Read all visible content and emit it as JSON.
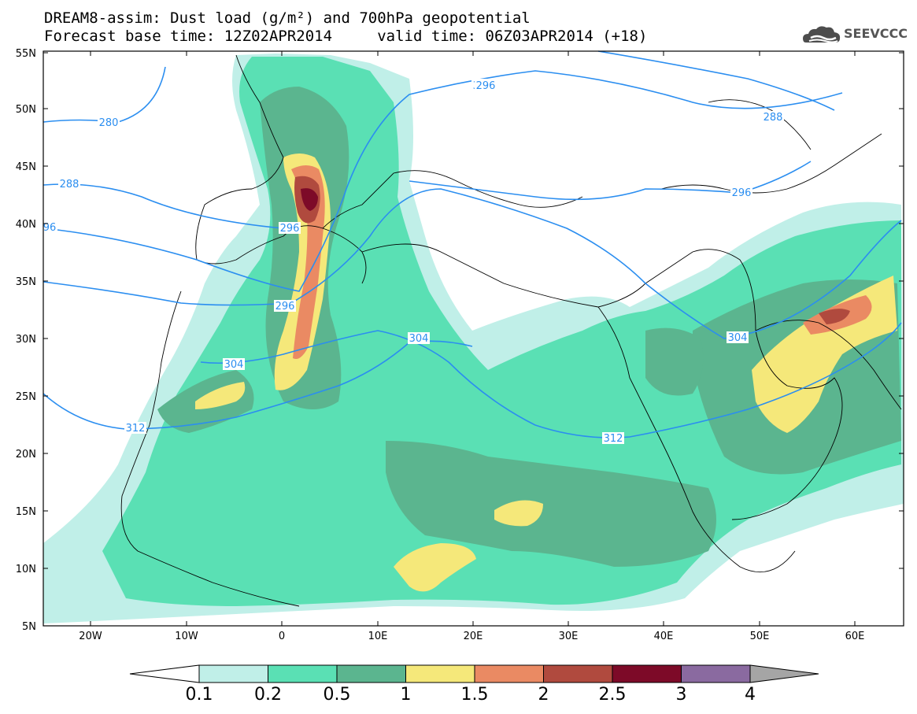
{
  "title": {
    "line1": "DREAM8-assim: Dust load (g/m²) and 700hPa geopotential",
    "line2": "Forecast base time: 12Z02APR2014     valid time: 06Z03APR2014 (+18)"
  },
  "logo": {
    "text": "SEEVCCC",
    "icon": "cloud-logo-icon"
  },
  "map": {
    "lat_labels": [
      "55N",
      "50N",
      "45N",
      "40N",
      "35N",
      "30N",
      "25N",
      "20N",
      "15N",
      "10N",
      "5N"
    ],
    "lon_labels": [
      "20W",
      "10W",
      "0",
      "10E",
      "20E",
      "30E",
      "40E",
      "50E",
      "60E"
    ],
    "contour_labels": [
      "280",
      "288",
      "296",
      "304",
      "312",
      "288",
      "296",
      "304",
      "312",
      "96",
      "288",
      "296",
      "304",
      "312",
      "296",
      "288"
    ],
    "colors": {
      "c1": "#c0efe8",
      "c2": "#5ae0b4",
      "c3": "#5bb58f",
      "c4": "#f5e87a",
      "c5": "#ea8a63",
      "c6": "#b04a3e",
      "c7": "#7d0a28",
      "c8": "#8a6aa0",
      "c9": "#a5a5a5",
      "contour": "#2b8ef0"
    }
  },
  "colorbar": {
    "labels": [
      "0.1",
      "0.2",
      "0.5",
      "1",
      "1.5",
      "2",
      "2.5",
      "3",
      "4"
    ]
  }
}
